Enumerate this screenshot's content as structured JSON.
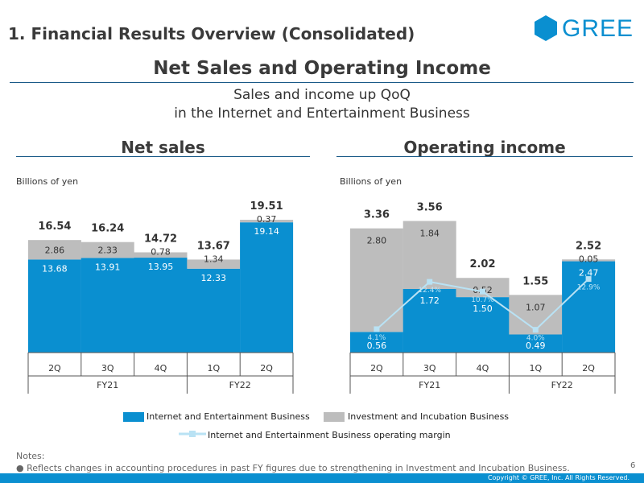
{
  "slide_title": "1. Financial Results Overview (Consolidated)",
  "logo_text": "GREE",
  "main_heading": "Net Sales and Operating Income",
  "subtitle_line1": "Sales and income up QoQ",
  "subtitle_line2": "in the Internet and Entertainment Business",
  "colors": {
    "accent": "#0a8fd0",
    "gray": "#bdbdbd",
    "margin_line": "#b9e2f4",
    "rule": "#1a5a88"
  },
  "chart_data": [
    {
      "type": "bar",
      "title": "Net sales",
      "ylabel": "Billions of yen",
      "categories": [
        "2Q",
        "3Q",
        "4Q",
        "1Q",
        "2Q"
      ],
      "groups": [
        {
          "label": "FY21",
          "count": 3
        },
        {
          "label": "FY22",
          "count": 2
        }
      ],
      "series": [
        {
          "name": "Internet and Entertainment Business",
          "values": [
            13.68,
            13.91,
            13.95,
            12.33,
            19.14
          ],
          "labels": [
            "13.68",
            "13.91",
            "13.95",
            "12.33",
            "19.14"
          ]
        },
        {
          "name": "Investment and Incubation Business",
          "values": [
            2.86,
            2.33,
            0.78,
            1.34,
            0.37
          ],
          "labels": [
            "2.86",
            "2.33",
            "0.78",
            "1.34",
            "0.37"
          ]
        }
      ],
      "totals": [
        "16.54",
        "16.24",
        "14.72",
        "13.67",
        "19.51"
      ],
      "ylim": [
        0,
        22
      ]
    },
    {
      "type": "bar",
      "title": "Operating income",
      "ylabel": "Billions of yen",
      "categories": [
        "2Q",
        "3Q",
        "4Q",
        "1Q",
        "2Q"
      ],
      "groups": [
        {
          "label": "FY21",
          "count": 3
        },
        {
          "label": "FY22",
          "count": 2
        }
      ],
      "series": [
        {
          "name": "Internet and Entertainment Business",
          "values": [
            0.56,
            1.72,
            1.5,
            0.49,
            2.47
          ],
          "labels": [
            "0.56",
            "1.72",
            "1.50",
            "0.49",
            "2.47"
          ]
        },
        {
          "name": "Investment and Incubation Business",
          "values": [
            2.8,
            1.84,
            0.52,
            1.07,
            0.05
          ],
          "labels": [
            "2.80",
            "1.84",
            "0.52",
            "1.07",
            "0.05"
          ]
        }
      ],
      "totals": [
        "3.36",
        "3.56",
        "2.02",
        "1.55",
        "2.52"
      ],
      "line_series": {
        "name": "Internet and Entertainment Business operating margin",
        "values": [
          4.1,
          12.4,
          10.7,
          4.0,
          12.9
        ],
        "labels": [
          "4.1%",
          "12.4%",
          "10.7%",
          "4.0%",
          "12.9%"
        ],
        "ylim": [
          0,
          30
        ]
      },
      "ylim": [
        0,
        4.05
      ]
    }
  ],
  "sections": {
    "net_sales": "Net sales",
    "operating_income": "Operating income",
    "unit": "Billions of yen"
  },
  "legend": {
    "internet": "Internet and Entertainment Business",
    "investment": "Investment and Incubation Business",
    "margin": "Internet and Entertainment Business operating margin"
  },
  "notes_title": "Notes:",
  "notes_body": "● Reflects changes in accounting procedures in past FY figures due to strengthening in Investment and Incubation Business.",
  "page_number": "6",
  "copyright": "Copyright © GREE, Inc. All Rights Reserved."
}
